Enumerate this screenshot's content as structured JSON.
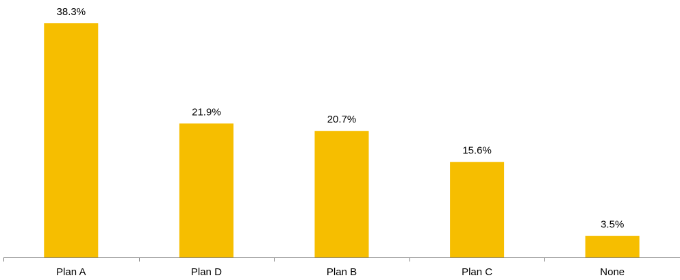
{
  "chart_data": {
    "type": "bar",
    "categories": [
      "Plan A",
      "Plan D",
      "Plan B",
      "Plan C",
      "None"
    ],
    "values": [
      38.3,
      21.9,
      20.7,
      15.6,
      3.5
    ],
    "value_labels": [
      "38.3%",
      "21.9%",
      "20.7%",
      "15.6%",
      "3.5%"
    ],
    "title": "",
    "xlabel": "",
    "ylabel": "",
    "ylim": [
      0,
      38.3
    ],
    "grid": false,
    "bar_color": "#f6be00",
    "axis_color": "#7f7f7f"
  }
}
